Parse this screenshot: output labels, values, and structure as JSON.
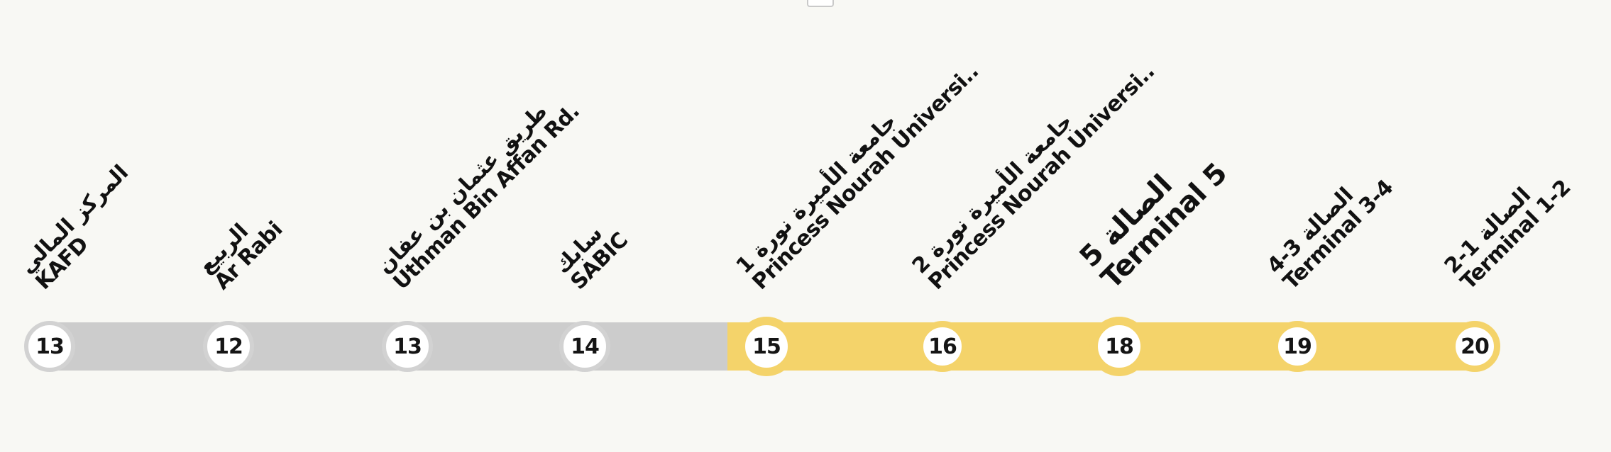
{
  "route": {
    "colors": {
      "passed": "#cccccc",
      "upcoming": "#f4d36a",
      "node_fill": "#ffffff",
      "text": "#111111"
    },
    "current_station": "Terminal 5",
    "stations": [
      {
        "name_ar": "المركز المالي",
        "name_en": "KAFD",
        "number": "13"
      },
      {
        "name_ar": "الربيع",
        "name_en": "Ar Rabi",
        "number": "12"
      },
      {
        "name_ar": "طريق عثمان بن عفان",
        "name_en": "Uthman Bin Affan Rd.",
        "number": "13"
      },
      {
        "name_ar": "سابك",
        "name_en": "SABIC",
        "number": "14"
      },
      {
        "name_ar": "جامعة الأميرة نورة 1",
        "name_en": "Princess Nourah Universi..",
        "number": "15"
      },
      {
        "name_ar": "جامعة الأميرة نورة 2",
        "name_en": "Princess Nourah Universi..",
        "number": "16"
      },
      {
        "name_ar": "الصالة 5",
        "name_en": "Terminal 5",
        "number": "18"
      },
      {
        "name_ar": "الصالة 3-4",
        "name_en": "Terminal 3-4",
        "number": "19"
      },
      {
        "name_ar": "الصالة 1-2",
        "name_en": "Terminal 1-2",
        "number": "20"
      }
    ]
  }
}
